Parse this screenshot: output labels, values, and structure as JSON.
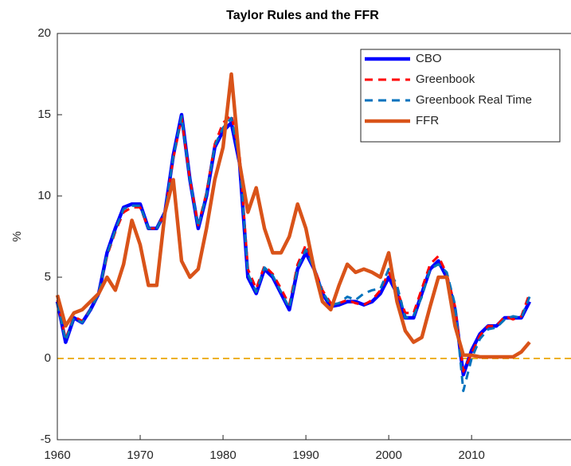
{
  "chart_data": {
    "type": "line",
    "title": "Taylor Rules and the FFR",
    "y_label": "%",
    "x": [
      1960,
      1961,
      1962,
      1963,
      1964,
      1965,
      1966,
      1967,
      1968,
      1969,
      1970,
      1971,
      1972,
      1973,
      1974,
      1975,
      1976,
      1977,
      1978,
      1979,
      1980,
      1981,
      1982,
      1983,
      1984,
      1985,
      1986,
      1987,
      1988,
      1989,
      1990,
      1991,
      1992,
      1993,
      1994,
      1995,
      1996,
      1997,
      1998,
      1999,
      2000,
      2001,
      2002,
      2003,
      2004,
      2005,
      2006,
      2007,
      2008,
      2009,
      2010,
      2011,
      2012,
      2013,
      2014,
      2015,
      2016,
      2017
    ],
    "series": [
      {
        "name": "CBO",
        "color": "#0000ff",
        "dash": false,
        "width": 4.5,
        "values": [
          3.5,
          1.0,
          2.5,
          2.2,
          3.0,
          4.0,
          6.5,
          8.0,
          9.3,
          9.5,
          9.5,
          8.0,
          8.0,
          9.0,
          12.5,
          15.0,
          11.0,
          8.0,
          10.0,
          13.0,
          14.0,
          14.5,
          12.0,
          5.0,
          4.0,
          5.5,
          5.0,
          4.0,
          3.0,
          5.5,
          6.5,
          5.5,
          4.0,
          3.2,
          3.3,
          3.5,
          3.5,
          3.3,
          3.5,
          4.0,
          5.0,
          4.0,
          2.5,
          2.5,
          4.0,
          5.5,
          6.0,
          5.0,
          3.0,
          -1.0,
          0.5,
          1.5,
          2.0,
          2.0,
          2.5,
          2.5,
          2.5,
          3.5
        ]
      },
      {
        "name": "Greenbook",
        "color": "#ff0000",
        "dash": true,
        "width": 3,
        "values": [
          3.6,
          1.2,
          2.6,
          2.3,
          3.0,
          4.0,
          6.3,
          7.8,
          9.0,
          9.3,
          9.3,
          8.0,
          8.0,
          9.0,
          12.3,
          14.8,
          11.0,
          8.2,
          10.2,
          13.2,
          14.5,
          15.0,
          12.5,
          5.5,
          4.3,
          5.7,
          5.2,
          4.3,
          3.3,
          5.8,
          7.0,
          5.6,
          4.2,
          3.4,
          3.4,
          3.6,
          3.4,
          3.3,
          3.6,
          4.2,
          5.3,
          4.2,
          2.8,
          2.8,
          4.3,
          5.8,
          6.3,
          5.2,
          3.2,
          -0.8,
          0.3,
          1.4,
          2.0,
          2.0,
          2.6,
          2.4,
          2.6,
          4.0
        ]
      },
      {
        "name": "Greenbook Real Time",
        "color": "#0072bd",
        "dash": true,
        "width": 3,
        "values": [
          3.4,
          1.1,
          2.5,
          2.2,
          3.0,
          4.0,
          6.4,
          7.9,
          9.2,
          9.4,
          9.4,
          8.0,
          8.0,
          9.0,
          12.4,
          14.9,
          11.0,
          8.1,
          10.1,
          13.1,
          14.2,
          14.8,
          12.2,
          5.2,
          4.1,
          5.6,
          5.1,
          4.1,
          3.1,
          5.6,
          6.7,
          5.5,
          4.1,
          3.3,
          3.4,
          3.8,
          3.6,
          4.0,
          4.2,
          4.3,
          5.5,
          4.5,
          2.5,
          2.6,
          3.8,
          5.5,
          5.8,
          5.3,
          3.3,
          -2.0,
          0.0,
          1.2,
          1.8,
          1.9,
          2.4,
          2.6,
          2.5,
          3.8
        ]
      },
      {
        "name": "FFR",
        "color": "#d95319",
        "dash": false,
        "width": 4.5,
        "values": [
          3.9,
          2.0,
          2.8,
          3.0,
          3.5,
          4.0,
          5.0,
          4.2,
          5.8,
          8.5,
          7.0,
          4.5,
          4.5,
          9.0,
          11.0,
          6.0,
          5.0,
          5.5,
          8.0,
          11.0,
          13.0,
          17.5,
          12.0,
          9.0,
          10.5,
          8.0,
          6.5,
          6.5,
          7.5,
          9.5,
          8.0,
          5.5,
          3.5,
          3.0,
          4.5,
          5.8,
          5.3,
          5.5,
          5.3,
          5.0,
          6.5,
          3.5,
          1.7,
          1.0,
          1.3,
          3.2,
          5.0,
          5.0,
          2.0,
          0.2,
          0.2,
          0.1,
          0.1,
          0.1,
          0.1,
          0.1,
          0.4,
          1.0
        ]
      }
    ],
    "reference_line": {
      "value": 0,
      "color": "#edb120"
    },
    "xlim": [
      1960,
      2022
    ],
    "xticks": [
      1960,
      1970,
      1980,
      1990,
      2000,
      2010
    ],
    "ylim": [
      -5,
      20
    ],
    "yticks": [
      -5,
      0,
      5,
      10,
      15,
      20
    ],
    "grid": false,
    "legend": "top-right"
  }
}
